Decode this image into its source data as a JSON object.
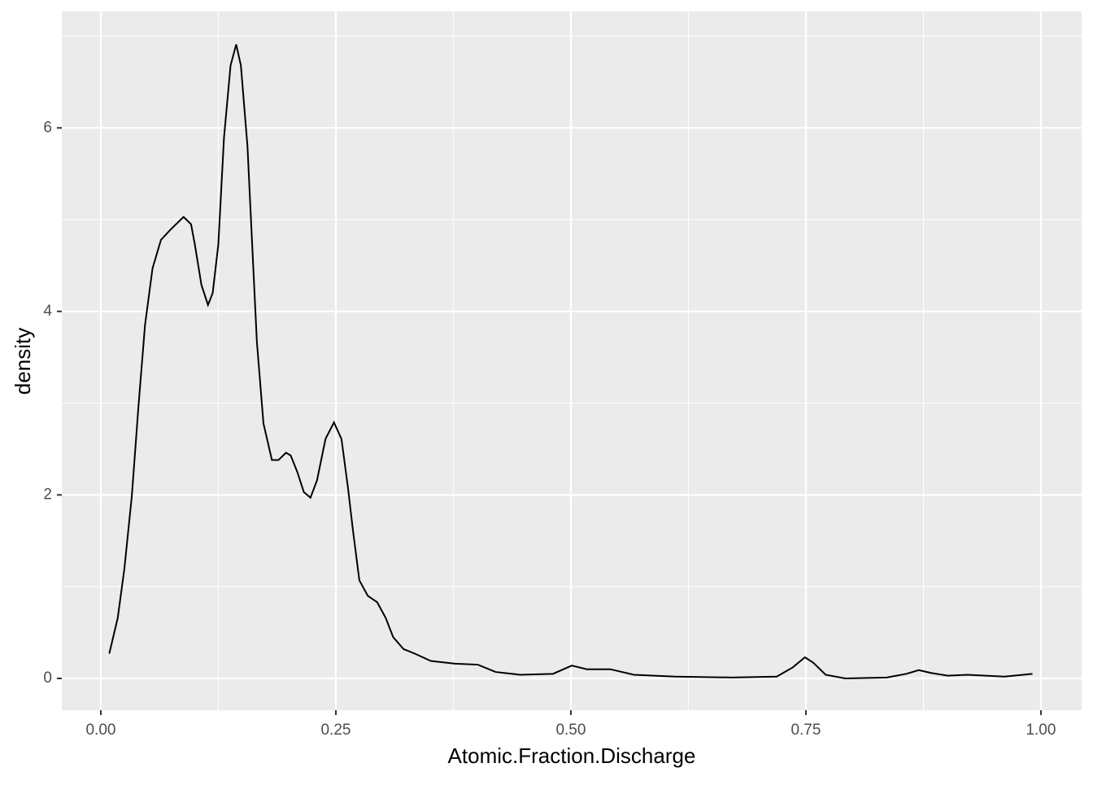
{
  "chart_data": {
    "type": "line",
    "x_label": "Atomic.Fraction.Discharge",
    "y_label": "density",
    "x": [
      0.009,
      0.018,
      0.025,
      0.033,
      0.04,
      0.047,
      0.055,
      0.064,
      0.074,
      0.088,
      0.096,
      0.1,
      0.107,
      0.114,
      0.119,
      0.125,
      0.131,
      0.138,
      0.144,
      0.149,
      0.156,
      0.161,
      0.166,
      0.173,
      0.182,
      0.189,
      0.197,
      0.202,
      0.209,
      0.216,
      0.223,
      0.23,
      0.239,
      0.248,
      0.256,
      0.263,
      0.268,
      0.275,
      0.284,
      0.294,
      0.303,
      0.311,
      0.322,
      0.334,
      0.351,
      0.377,
      0.401,
      0.42,
      0.446,
      0.481,
      0.501,
      0.517,
      0.542,
      0.567,
      0.611,
      0.671,
      0.719,
      0.736,
      0.749,
      0.758,
      0.771,
      0.792,
      0.836,
      0.857,
      0.87,
      0.883,
      0.901,
      0.922,
      0.961,
      0.991
    ],
    "series": [
      {
        "color": "#000000",
        "values": [
          0.27,
          0.66,
          1.19,
          1.99,
          2.96,
          3.85,
          4.47,
          4.78,
          4.89,
          5.03,
          4.95,
          4.73,
          4.29,
          4.07,
          4.2,
          4.73,
          5.89,
          6.68,
          6.91,
          6.68,
          5.8,
          4.73,
          3.67,
          2.78,
          2.38,
          2.38,
          2.46,
          2.43,
          2.25,
          2.03,
          1.97,
          2.16,
          2.61,
          2.79,
          2.61,
          2.07,
          1.63,
          1.07,
          0.9,
          0.83,
          0.66,
          0.45,
          0.32,
          0.27,
          0.19,
          0.16,
          0.15,
          0.07,
          0.04,
          0.05,
          0.14,
          0.1,
          0.1,
          0.04,
          0.02,
          0.01,
          0.02,
          0.12,
          0.23,
          0.17,
          0.04,
          0.0,
          0.01,
          0.05,
          0.09,
          0.06,
          0.03,
          0.04,
          0.02,
          0.05
        ]
      }
    ],
    "xlim": [
      -0.0415,
      1.0433
    ],
    "ylim": [
      -0.346,
      7.27
    ],
    "xticks": [
      {
        "value": 0,
        "label": "0.00"
      },
      {
        "value": 0.25,
        "label": "0.25"
      },
      {
        "value": 0.5,
        "label": "0.50"
      },
      {
        "value": 0.75,
        "label": "0.75"
      },
      {
        "value": 1,
        "label": "1.00"
      }
    ],
    "yticks": [
      0,
      2,
      4,
      6
    ],
    "x_minor_grid": [
      0.125,
      0.375,
      0.625,
      0.875
    ],
    "y_minor_grid": [
      1,
      3,
      5,
      7
    ],
    "panel_color": "#ebebeb",
    "grid": true
  }
}
